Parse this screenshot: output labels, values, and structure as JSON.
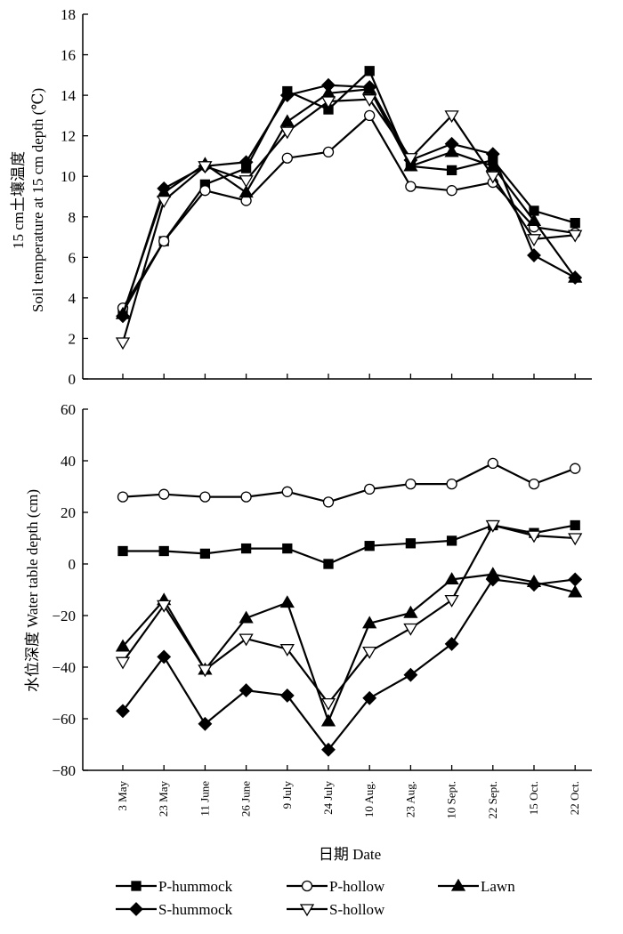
{
  "chart_data": [
    {
      "type": "line",
      "ylabel_line1": "15 cm土壤温度",
      "ylabel_line2": "Soil temperature at 15 cm depth (℃)",
      "ylim": [
        0,
        18
      ],
      "yticks": [
        0,
        2,
        4,
        6,
        8,
        10,
        12,
        14,
        16,
        18
      ],
      "categories": [
        "3 May",
        "23 May",
        "11 June",
        "26 June",
        "9 July",
        "24 July",
        "10 Aug.",
        "23 Aug.",
        "10 Sept.",
        "22 Sept.",
        "15 Oct.",
        "22 Oct."
      ],
      "series": [
        {
          "name": "P-hummock",
          "marker": "square",
          "fill": "#000000",
          "values": [
            3.3,
            6.8,
            9.6,
            10.4,
            14.2,
            13.3,
            15.2,
            10.5,
            10.3,
            10.8,
            8.3,
            7.7
          ]
        },
        {
          "name": "P-hollow",
          "marker": "circle",
          "fill": "#ffffff",
          "values": [
            3.5,
            6.8,
            9.3,
            8.8,
            10.9,
            11.2,
            13.0,
            9.5,
            9.3,
            9.7,
            7.5,
            7.2
          ]
        },
        {
          "name": "Lawn",
          "marker": "triangle-up",
          "fill": "#000000",
          "values": [
            3.2,
            9.2,
            10.6,
            9.2,
            12.7,
            14.1,
            14.3,
            10.5,
            11.2,
            10.5,
            7.8,
            5.0
          ]
        },
        {
          "name": "S-hummock",
          "marker": "diamond",
          "fill": "#000000",
          "values": [
            3.1,
            9.4,
            10.5,
            10.7,
            14.0,
            14.5,
            14.4,
            10.8,
            11.6,
            11.1,
            6.1,
            5.0
          ]
        },
        {
          "name": "S-hollow",
          "marker": "triangle-down",
          "fill": "#ffffff",
          "values": [
            1.8,
            8.8,
            10.5,
            9.8,
            12.2,
            13.7,
            13.8,
            10.9,
            13.0,
            10.0,
            6.9,
            7.1
          ]
        }
      ]
    },
    {
      "type": "line",
      "ylabel": "水位深度 Water table depth (cm)",
      "ylim": [
        -80,
        60
      ],
      "yticks": [
        -80,
        -60,
        -40,
        -20,
        0,
        20,
        40,
        60
      ],
      "categories": [
        "3 May",
        "23 May",
        "11 June",
        "26 June",
        "9 July",
        "24 July",
        "10 Aug.",
        "23 Aug.",
        "10 Sept.",
        "22 Sept.",
        "15 Oct.",
        "22 Oct."
      ],
      "xlabel": "日期 Date",
      "series": [
        {
          "name": "P-hummock",
          "marker": "square",
          "fill": "#000000",
          "values": [
            5,
            5,
            4,
            6,
            6,
            0,
            7,
            8,
            9,
            15,
            12,
            15
          ]
        },
        {
          "name": "P-hollow",
          "marker": "circle",
          "fill": "#ffffff",
          "values": [
            26,
            27,
            26,
            26,
            28,
            24,
            29,
            31,
            31,
            39,
            31,
            37
          ]
        },
        {
          "name": "Lawn",
          "marker": "triangle-up",
          "fill": "#000000",
          "values": [
            -32,
            -14,
            -41,
            -21,
            -15,
            -61,
            -23,
            -19,
            -6,
            -4,
            -7,
            -11
          ]
        },
        {
          "name": "S-hummock",
          "marker": "diamond",
          "fill": "#000000",
          "values": [
            -57,
            -36,
            -62,
            -49,
            -51,
            -72,
            -52,
            -43,
            -31,
            -6,
            -8,
            -6
          ]
        },
        {
          "name": "S-hollow",
          "marker": "triangle-down",
          "fill": "#ffffff",
          "values": [
            -38,
            -16,
            -41,
            -29,
            -33,
            -54,
            -34,
            -25,
            -14,
            15,
            11,
            10
          ]
        }
      ]
    }
  ],
  "legend": {
    "placement": "bottom",
    "entries": [
      "P-hummock",
      "P-hollow",
      "Lawn",
      "S-hummock",
      "S-hollow"
    ]
  }
}
